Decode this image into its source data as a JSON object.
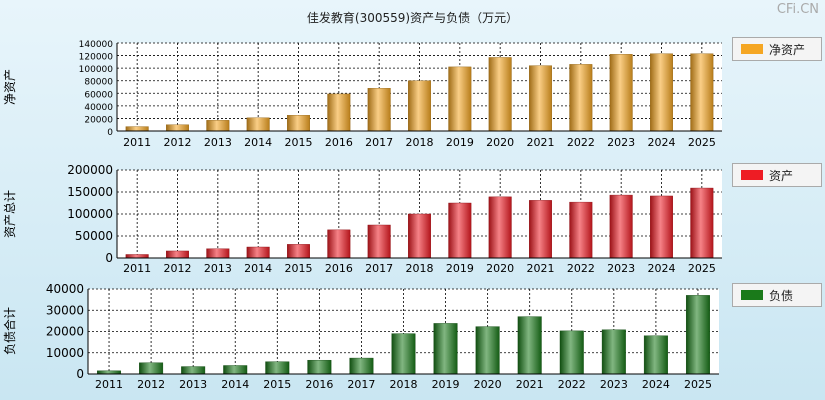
{
  "title": "佳发教育(300559)资产与负债（万元）",
  "watermark": "CFi.CN",
  "chart_data": [
    {
      "type": "bar",
      "ylabel": "净资产",
      "legend": "净资产",
      "color": "#f5a623",
      "ylim": [
        0,
        140000
      ],
      "yticks": [
        0,
        20000,
        40000,
        60000,
        80000,
        100000,
        120000,
        140000
      ],
      "categories": [
        "2011",
        "2012",
        "2013",
        "2014",
        "2015",
        "2016",
        "2017",
        "2018",
        "2019",
        "2020",
        "2021",
        "2022",
        "2023",
        "2024",
        "2025"
      ],
      "values": [
        7000,
        10000,
        17000,
        21000,
        25000,
        59000,
        68000,
        80000,
        102000,
        117000,
        104000,
        106000,
        122000,
        123000,
        123000
      ]
    },
    {
      "type": "bar",
      "ylabel": "资产总计",
      "legend": "资产",
      "color": "#ee1c24",
      "ylim": [
        0,
        200000
      ],
      "yticks": [
        0,
        50000,
        100000,
        150000,
        200000
      ],
      "categories": [
        "2011",
        "2012",
        "2013",
        "2014",
        "2015",
        "2016",
        "2017",
        "2018",
        "2019",
        "2020",
        "2021",
        "2022",
        "2023",
        "2024",
        "2025"
      ],
      "values": [
        8000,
        16000,
        21000,
        25000,
        31000,
        64000,
        75000,
        100000,
        125000,
        139000,
        131000,
        127000,
        143000,
        141000,
        159000
      ]
    },
    {
      "type": "bar",
      "ylabel": "负债合计",
      "legend": "负债",
      "color": "#1a7a1a",
      "ylim": [
        0,
        40000
      ],
      "yticks": [
        0,
        10000,
        20000,
        30000,
        40000
      ],
      "categories": [
        "2011",
        "2012",
        "2013",
        "2014",
        "2015",
        "2016",
        "2017",
        "2018",
        "2019",
        "2020",
        "2021",
        "2022",
        "2023",
        "2024",
        "2025"
      ],
      "values": [
        1500,
        5300,
        3500,
        4000,
        5800,
        6500,
        7500,
        19000,
        23800,
        22300,
        27000,
        20300,
        20800,
        18000,
        37000
      ]
    }
  ]
}
